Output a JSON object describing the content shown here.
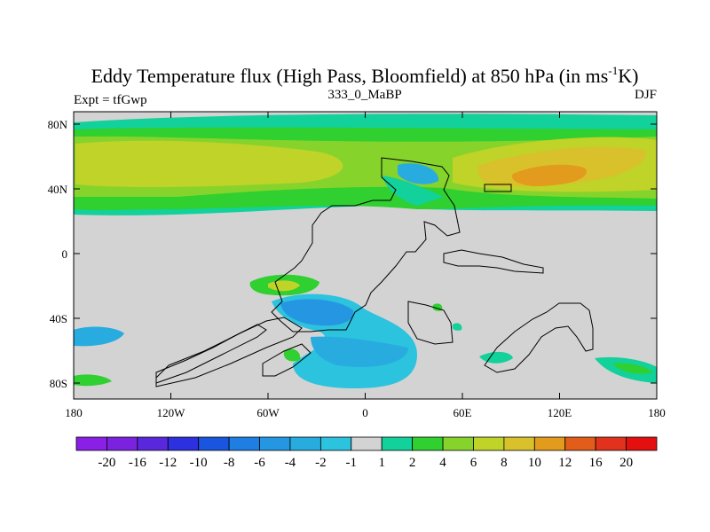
{
  "title": "Eddy Temperature flux (High Pass, Bloomfield) at 850 hPa (in ms",
  "title_superscript": "-1",
  "title_end": "K)",
  "left_label": "Expt = tfGwp",
  "center_label": "333_0_MaBP",
  "right_label": "DJF",
  "lat_ticks": [
    "80N",
    "40N",
    "0",
    "40S",
    "80S"
  ],
  "lon_ticks": [
    "180",
    "120W",
    "60W",
    "0",
    "60E",
    "120E",
    "180"
  ],
  "colorbar_labels": [
    "-20",
    "-16",
    "-12",
    "-10",
    "-8",
    "-6",
    "-4",
    "-2",
    "-1",
    "1",
    "2",
    "4",
    "6",
    "8",
    "10",
    "12",
    "16",
    "20"
  ],
  "colorbar_colors": [
    "#8a1fe6",
    "#7a22e0",
    "#5a28dc",
    "#2c30de",
    "#1a55e0",
    "#1f7ee2",
    "#2597e2",
    "#28acdf",
    "#2bc3de",
    "#d3d3d3",
    "#12d19a",
    "#2fd030",
    "#86d32c",
    "#bfd329",
    "#d9c12c",
    "#e29b1c",
    "#e25c1a",
    "#e0321c",
    "#e41010"
  ],
  "land_color": "#d3d3d3"
}
